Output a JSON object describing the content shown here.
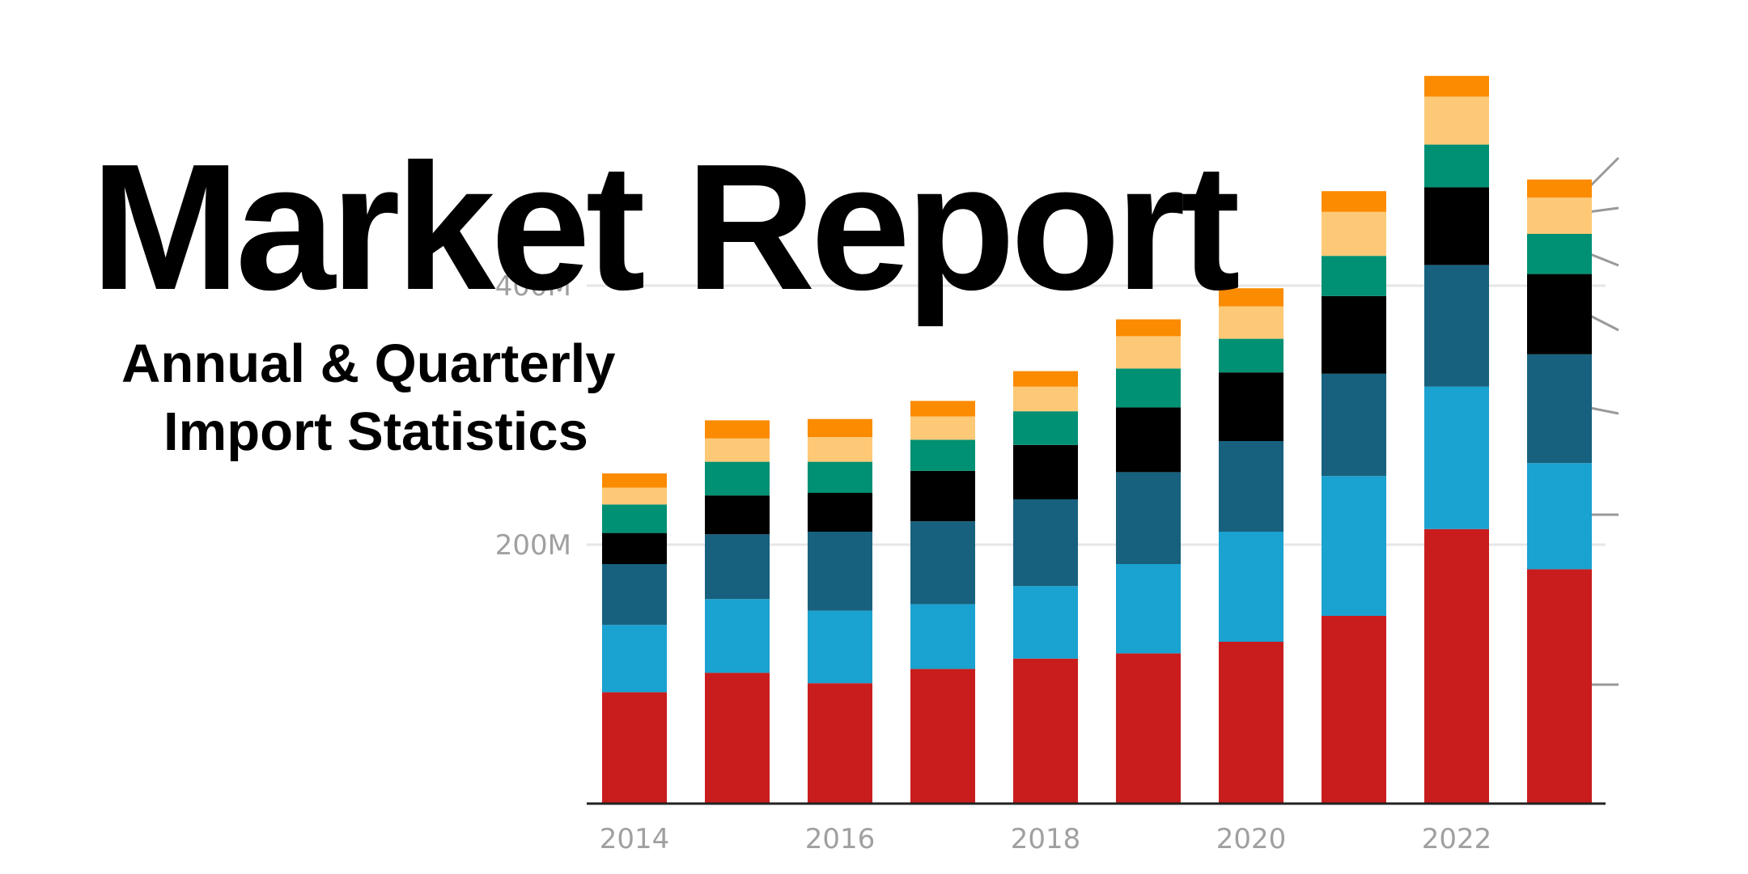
{
  "header": {
    "title": "Market Report",
    "subtitle_line1": "Annual & Quarterly",
    "subtitle_line2": "Import Statistics"
  },
  "chart_data": {
    "type": "bar",
    "stacked": true,
    "categories": [
      "2014",
      "2015",
      "2016",
      "2017",
      "2018",
      "2019",
      "2020",
      "2021",
      "2022",
      "2023"
    ],
    "x_tick_labels": [
      "2014",
      "2016",
      "2018",
      "2020",
      "2022"
    ],
    "y_tick_labels": [
      "200M",
      "400M"
    ],
    "ylim": [
      0,
      560
    ],
    "y_unit": "M",
    "gridlines": true,
    "series": [
      {
        "color": "#c91d1d",
        "values": [
          86,
          101,
          93,
          104,
          112,
          116,
          125,
          145,
          212,
          181
        ]
      },
      {
        "color": "#1aa2d0",
        "values": [
          52,
          57,
          56,
          50,
          56,
          69,
          85,
          108,
          110,
          82
        ]
      },
      {
        "color": "#17617e",
        "values": [
          47,
          50,
          61,
          64,
          67,
          71,
          70,
          79,
          94,
          84
        ]
      },
      {
        "color": "#000000",
        "values": [
          24,
          30,
          30,
          39,
          42,
          50,
          53,
          60,
          60,
          62
        ]
      },
      {
        "color": "#009073",
        "values": [
          22,
          26,
          24,
          24,
          26,
          30,
          26,
          31,
          33,
          31
        ]
      },
      {
        "color": "#fec977",
        "values": [
          13,
          18,
          19,
          18,
          19,
          25,
          25,
          34,
          37,
          28
        ]
      },
      {
        "color": "#fb8b00",
        "values": [
          11,
          14,
          14,
          12,
          12,
          13,
          14,
          16,
          16,
          14
        ]
      }
    ]
  }
}
